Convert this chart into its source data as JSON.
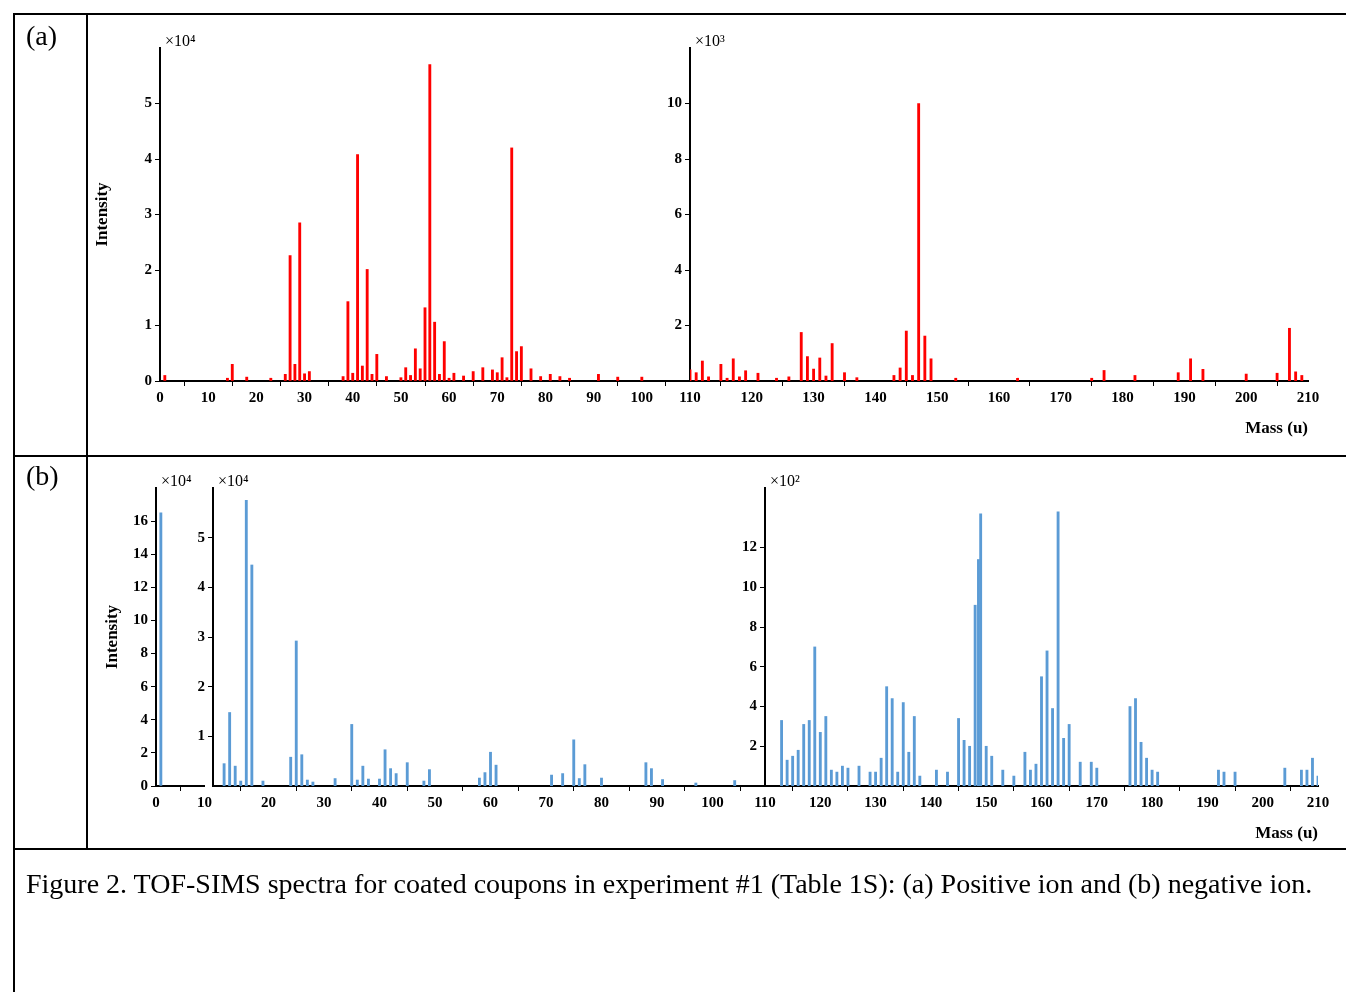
{
  "chart_data": [
    {
      "type": "bar",
      "title": "(a)",
      "ylabel": "Intensity",
      "annotations": [
        "×10⁴"
      ],
      "color": "#ff0000",
      "grid": false,
      "legend": false,
      "xlim": [
        0,
        110
      ],
      "xticks": [
        0,
        10,
        20,
        30,
        40,
        50,
        60,
        70,
        80,
        90,
        100
      ],
      "ylim": [
        0,
        6
      ],
      "yticks": [
        0,
        1,
        2,
        3,
        4,
        5
      ],
      "x": [
        1,
        14,
        15,
        18,
        23,
        26,
        27,
        28,
        29,
        30,
        31,
        38,
        39,
        40,
        41,
        42,
        43,
        44,
        45,
        47,
        50,
        51,
        52,
        53,
        54,
        55,
        56,
        57,
        58,
        59,
        60,
        61,
        63,
        65,
        67,
        69,
        70,
        71,
        72,
        73,
        74,
        75,
        77,
        79,
        81,
        83,
        85,
        91,
        95,
        100
      ],
      "values": [
        0.1,
        0.05,
        0.3,
        0.07,
        0.05,
        0.12,
        2.26,
        0.3,
        2.85,
        0.13,
        0.17,
        0.08,
        1.43,
        0.14,
        4.08,
        0.27,
        2.01,
        0.12,
        0.48,
        0.08,
        0.06,
        0.24,
        0.1,
        0.58,
        0.22,
        1.32,
        5.7,
        1.06,
        0.12,
        0.71,
        0.05,
        0.14,
        0.09,
        0.17,
        0.24,
        0.2,
        0.15,
        0.42,
        0.06,
        4.2,
        0.53,
        0.62,
        0.22,
        0.08,
        0.12,
        0.08,
        0.05,
        0.12,
        0.07,
        0.07
      ]
    },
    {
      "type": "bar",
      "annotations": [
        "×10³"
      ],
      "xlabel": "Mass (u)",
      "color": "#ff0000",
      "grid": false,
      "legend": false,
      "xlim": [
        110,
        210
      ],
      "xticks": [
        110,
        120,
        130,
        140,
        150,
        160,
        170,
        180,
        190,
        200,
        210
      ],
      "ylim": [
        0,
        12
      ],
      "yticks": [
        2,
        4,
        6,
        8,
        10
      ],
      "x": [
        110,
        111,
        112,
        113,
        115,
        116,
        117,
        118,
        119,
        121,
        124,
        126,
        128,
        129,
        130,
        131,
        132,
        133,
        135,
        137,
        143,
        144,
        145,
        146,
        147,
        148,
        149,
        153,
        163,
        175,
        177,
        182,
        189,
        191,
        193,
        200,
        205,
        207,
        208,
        209
      ],
      "values": [
        0.4,
        0.3,
        0.72,
        0.15,
        0.6,
        0.1,
        0.8,
        0.15,
        0.37,
        0.28,
        0.1,
        0.15,
        1.75,
        0.88,
        0.43,
        0.83,
        0.18,
        1.35,
        0.3,
        0.12,
        0.2,
        0.47,
        1.8,
        0.2,
        10,
        1.62,
        0.8,
        0.1,
        0.1,
        0.1,
        0.38,
        0.2,
        0.3,
        0.8,
        0.42,
        0.25,
        0.28,
        1.9,
        0.33,
        0.2
      ]
    },
    {
      "type": "bar",
      "title": "(b)",
      "ylabel": "Intensity",
      "annotations": [
        "×10⁴"
      ],
      "color": "#5b9bd5",
      "grid": false,
      "legend": false,
      "xlim": [
        0,
        10
      ],
      "xticks": [
        0,
        10
      ],
      "ylim": [
        0,
        18
      ],
      "yticks": [
        0,
        2,
        4,
        6,
        8,
        10,
        12,
        14,
        16
      ],
      "x": [
        1
      ],
      "values": [
        16.5
      ]
    },
    {
      "type": "bar",
      "annotations": [
        "×10⁴"
      ],
      "color": "#5b9bd5",
      "grid": false,
      "legend": false,
      "xlim": [
        10,
        110
      ],
      "xticks": [
        20,
        30,
        40,
        50,
        60,
        70,
        80,
        90,
        100
      ],
      "ylim": [
        0,
        6
      ],
      "yticks": [
        1,
        2,
        3,
        4,
        5
      ],
      "x": [
        12,
        13,
        14,
        15,
        16,
        17,
        19,
        24,
        25,
        26,
        27,
        28,
        32,
        35,
        36,
        37,
        38,
        40,
        41,
        42,
        43,
        45,
        48,
        49,
        58,
        59,
        60,
        61,
        71,
        73,
        75,
        76,
        77,
        80,
        88,
        89,
        91,
        97,
        104
      ],
      "values": [
        0.45,
        1.48,
        0.4,
        0.1,
        5.75,
        4.45,
        0.1,
        0.58,
        2.92,
        0.63,
        0.12,
        0.08,
        0.15,
        1.24,
        0.12,
        0.4,
        0.14,
        0.14,
        0.73,
        0.35,
        0.25,
        0.47,
        0.1,
        0.33,
        0.16,
        0.27,
        0.68,
        0.42,
        0.22,
        0.25,
        0.93,
        0.15,
        0.43,
        0.16,
        0.47,
        0.35,
        0.13,
        0.06,
        0.11
      ]
    },
    {
      "type": "bar",
      "annotations": [
        "×10²",
        "Figure 2. TOF-SIMS spectra for coated coupons in experiment #1 (Table 1S): (a) Positive ion and (b) negative ion."
      ],
      "xlabel": "Mass (u)",
      "color": "#5b9bd5",
      "grid": false,
      "legend": false,
      "xlim": [
        110,
        210
      ],
      "xticks": [
        110,
        120,
        130,
        140,
        150,
        160,
        170,
        180,
        190,
        200,
        210
      ],
      "ylim": [
        0,
        15
      ],
      "yticks": [
        2,
        4,
        6,
        8,
        10,
        12
      ],
      "x": [
        113,
        114,
        115,
        116,
        117,
        118,
        119,
        120,
        121,
        122,
        123,
        124,
        125,
        127,
        129,
        130,
        131,
        132,
        133,
        134,
        135,
        136,
        137,
        138,
        141,
        143,
        145,
        146,
        147,
        148,
        148.6,
        149,
        150,
        151,
        153,
        155,
        157,
        158,
        159,
        160,
        161,
        162,
        163,
        164,
        165,
        167,
        169,
        170,
        176,
        177,
        178,
        179,
        180,
        181,
        192,
        193,
        195,
        204,
        207,
        208,
        209,
        210
      ],
      "values": [
        3.3,
        1.3,
        1.5,
        1.8,
        3.1,
        3.3,
        7,
        2.7,
        3.5,
        0.8,
        0.7,
        1,
        0.9,
        1,
        0.7,
        0.7,
        1.4,
        5,
        4.4,
        0.7,
        4.2,
        1.7,
        3.5,
        0.5,
        0.8,
        0.7,
        3.4,
        2.3,
        2,
        9.1,
        11.4,
        13.7,
        2,
        1.5,
        0.8,
        0.5,
        1.7,
        0.8,
        1.1,
        5.5,
        6.8,
        3.9,
        13.8,
        2.4,
        3.1,
        1.2,
        1.2,
        0.9,
        4,
        4.4,
        2.2,
        1.4,
        0.8,
        0.7,
        0.8,
        0.7,
        0.7,
        0.9,
        0.8,
        0.8,
        1.4,
        0.5
      ]
    }
  ]
}
